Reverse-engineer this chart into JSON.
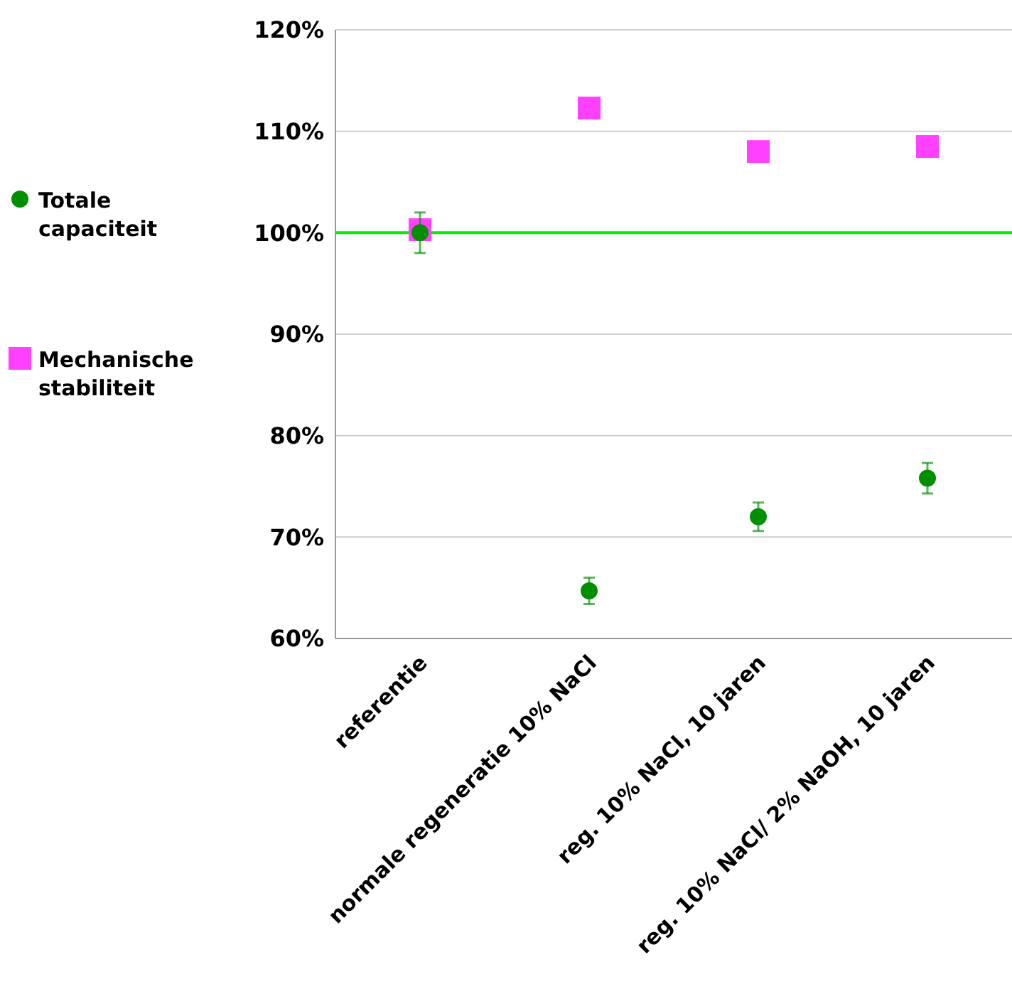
{
  "chart_data": {
    "type": "scatter",
    "categories": [
      "referentie",
      "normale regeneratie 10% NaCl",
      "reg. 10% NaCl, 10 jaren",
      "reg. 10% NaCl/ 2% NaOH, 10 jaren"
    ],
    "series": [
      {
        "name": "Totale capaciteit",
        "color": "#008f00",
        "marker": "circle",
        "values": [
          100,
          64.7,
          72.0,
          75.8
        ],
        "errors": [
          2.0,
          1.3,
          1.4,
          1.5
        ]
      },
      {
        "name": "Mechanische stabiliteit",
        "color": "#ff40ff",
        "marker": "square",
        "values": [
          100.3,
          112.3,
          108.0,
          108.5
        ]
      }
    ],
    "ylim": [
      60,
      120
    ],
    "yticks": [
      {
        "value": 60,
        "label": "60%"
      },
      {
        "value": 70,
        "label": "70%"
      },
      {
        "value": 80,
        "label": "80%"
      },
      {
        "value": 90,
        "label": "90%"
      },
      {
        "value": 100,
        "label": "100%"
      },
      {
        "value": 110,
        "label": "110%"
      },
      {
        "value": 120,
        "label": "120%"
      }
    ],
    "ref_lines": [
      {
        "axis": "y",
        "value": 100,
        "label": null,
        "color": "#00ee00"
      }
    ],
    "grid": "y",
    "legend": "left"
  }
}
